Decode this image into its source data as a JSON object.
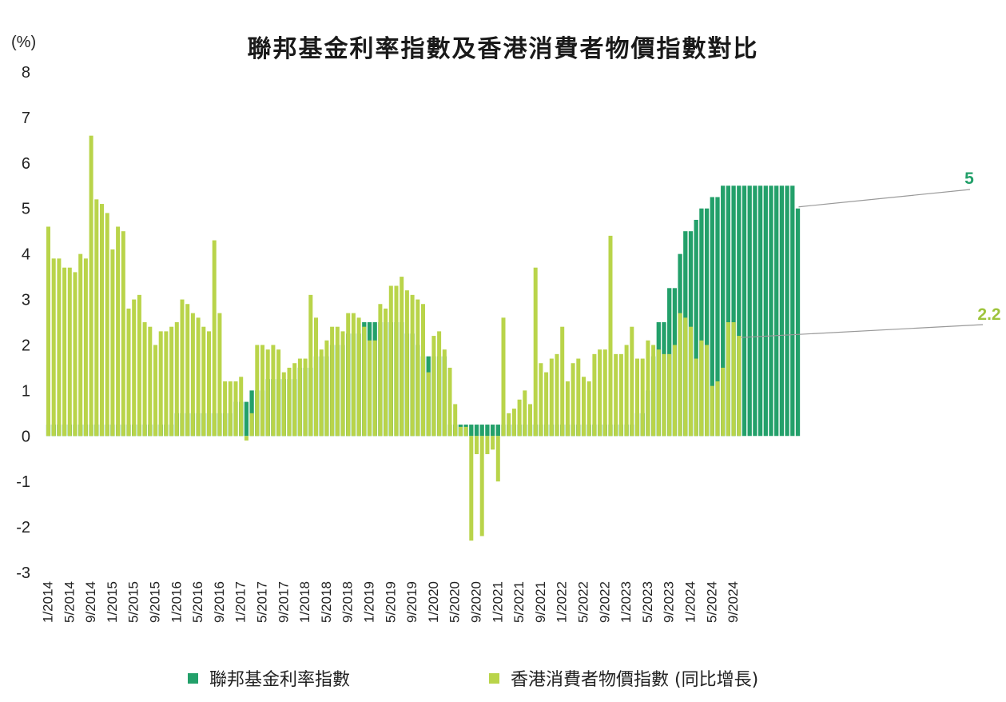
{
  "chart_data": {
    "type": "bar",
    "title": "聯邦基金利率指數及香港消費者物價指數對比",
    "ylabel": "(%)",
    "ylim": [
      -3,
      8
    ],
    "yticks": [
      8,
      7,
      6,
      5,
      4,
      3,
      2,
      1,
      0,
      -1,
      -2,
      -3
    ],
    "grid": false,
    "legend_position": "bottom",
    "start_month": "1/2014",
    "x_tick_labels": [
      "1/2014",
      "5/2014",
      "9/2014",
      "1/2015",
      "5/2015",
      "9/2015",
      "1/2016",
      "5/2016",
      "9/2016",
      "1/2017",
      "5/2017",
      "9/2017",
      "1/2018",
      "5/2018",
      "9/2018",
      "1/2019",
      "5/2019",
      "9/2019",
      "1/2020",
      "5/2020",
      "9/2020",
      "1/2021",
      "5/2021",
      "9/2021",
      "1/2022",
      "5/2022",
      "9/2022",
      "1/2023",
      "5/2023",
      "9/2023",
      "1/2024",
      "5/2024",
      "9/2024"
    ],
    "series": [
      {
        "name": "聯邦基金利率指數",
        "color": "#23a06a",
        "values": [
          0.25,
          0.25,
          0.25,
          0.25,
          0.25,
          0.25,
          0.25,
          0.25,
          0.25,
          0.25,
          0.25,
          0.25,
          0.25,
          0.25,
          0.25,
          0.25,
          0.25,
          0.25,
          0.25,
          0.25,
          0.25,
          0.25,
          0.25,
          0.25,
          0.5,
          0.5,
          0.5,
          0.5,
          0.5,
          0.5,
          0.5,
          0.5,
          0.5,
          0.5,
          0.5,
          0.75,
          0.75,
          0.75,
          1.0,
          1.0,
          1.0,
          1.25,
          1.25,
          1.25,
          1.25,
          1.25,
          1.25,
          1.5,
          1.5,
          1.5,
          1.75,
          1.75,
          1.75,
          2.0,
          2.0,
          2.0,
          2.25,
          2.25,
          2.25,
          2.5,
          2.5,
          2.5,
          2.5,
          2.5,
          2.5,
          2.5,
          2.5,
          2.25,
          2.25,
          2.0,
          1.75,
          1.75,
          1.75,
          1.75,
          1.75,
          0.25,
          0.25,
          0.25,
          0.25,
          0.25,
          0.25,
          0.25,
          0.25,
          0.25,
          0.25,
          0.25,
          0.25,
          0.25,
          0.25,
          0.25,
          0.25,
          0.25,
          0.25,
          0.25,
          0.25,
          0.25,
          0.25,
          0.25,
          0.25,
          0.25,
          0.25,
          0.25,
          0.25,
          0.25,
          0.25,
          0.25,
          0.25,
          0.25,
          0.25,
          0.25,
          0.5,
          0.5,
          1.0,
          1.75,
          2.5,
          2.5,
          3.25,
          3.25,
          4.0,
          4.5,
          4.5,
          4.75,
          5.0,
          5.0,
          5.25,
          5.25,
          5.5,
          5.5,
          5.5,
          5.5,
          5.5,
          5.5,
          5.5,
          5.5,
          5.5,
          5.5,
          5.5,
          5.5,
          5.5,
          5.5,
          5.0
        ]
      },
      {
        "name": "香港消費者物價指數 (同比增長)",
        "color": "#b9d44a",
        "values": [
          4.6,
          3.9,
          3.9,
          3.7,
          3.7,
          3.6,
          4.0,
          3.9,
          6.6,
          5.2,
          5.1,
          4.9,
          4.1,
          4.6,
          4.5,
          2.8,
          3.0,
          3.1,
          2.5,
          2.4,
          2.0,
          2.3,
          2.3,
          2.4,
          2.5,
          3.0,
          2.9,
          2.7,
          2.6,
          2.4,
          2.3,
          4.3,
          2.7,
          1.2,
          1.2,
          1.2,
          1.3,
          -0.1,
          0.5,
          2.0,
          2.0,
          1.9,
          2.0,
          1.9,
          1.4,
          1.5,
          1.6,
          1.7,
          1.7,
          3.1,
          2.6,
          1.9,
          2.1,
          2.4,
          2.4,
          2.3,
          2.7,
          2.7,
          2.6,
          2.4,
          2.1,
          2.1,
          2.9,
          2.8,
          3.3,
          3.3,
          3.5,
          3.2,
          3.1,
          3.0,
          2.9,
          1.4,
          2.2,
          2.3,
          1.9,
          1.5,
          0.7,
          0.2,
          0.2,
          -2.3,
          -0.4,
          -2.2,
          -0.4,
          -0.3,
          -1.0,
          2.6,
          0.5,
          0.6,
          0.8,
          1.0,
          0.7,
          3.7,
          1.6,
          1.4,
          1.7,
          1.8,
          2.4,
          1.2,
          1.6,
          1.7,
          1.3,
          1.2,
          1.8,
          1.9,
          1.9,
          4.4,
          1.8,
          1.8,
          2.0,
          2.4,
          1.7,
          1.7,
          2.1,
          2.0,
          1.9,
          1.8,
          1.8,
          2.0,
          2.7,
          2.6,
          2.4,
          1.7,
          2.1,
          2.0,
          1.1,
          1.2,
          1.5,
          2.5,
          2.5,
          2.2
        ]
      }
    ],
    "annotations": [
      {
        "text": "5",
        "series": "聯邦基金利率指數",
        "color": "#23a06a"
      },
      {
        "text": "2.2",
        "series": "香港消費者物價指數 (同比增長)",
        "color": "#9ec43c"
      }
    ]
  }
}
